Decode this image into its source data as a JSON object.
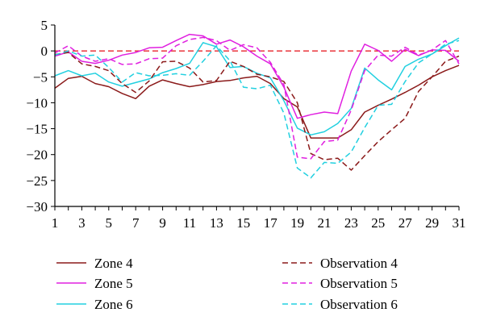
{
  "chart_data": {
    "type": "line",
    "title": "",
    "xlabel": "",
    "ylabel": "",
    "xlim": [
      1,
      31
    ],
    "ylim": [
      -30,
      5
    ],
    "x_ticks": [
      1,
      3,
      5,
      7,
      9,
      11,
      13,
      15,
      17,
      19,
      21,
      23,
      25,
      27,
      29,
      31
    ],
    "y_ticks": [
      5,
      0,
      -5,
      -10,
      -15,
      -20,
      -25,
      -30
    ],
    "grid": false,
    "legend_position": "bottom",
    "reference_line": {
      "y": 0,
      "color": "#e8232a",
      "style": "dashed"
    },
    "x": [
      1,
      2,
      3,
      4,
      5,
      6,
      7,
      8,
      9,
      10,
      11,
      12,
      13,
      14,
      15,
      16,
      17,
      18,
      19,
      20,
      21,
      22,
      23,
      24,
      25,
      26,
      27,
      28,
      29,
      30,
      31
    ],
    "series": [
      {
        "name": "Zone 4",
        "color": "#8b1a1a",
        "style": "solid",
        "values": [
          -7.2,
          -5.3,
          -4.9,
          -6.3,
          -6.9,
          -8.2,
          -9.2,
          -6.8,
          -5.6,
          -6.3,
          -6.9,
          -6.5,
          -5.9,
          -5.7,
          -5.2,
          -4.9,
          -6.3,
          -9.2,
          -10.8,
          -16.8,
          -16.8,
          -16.8,
          -15.2,
          -11.8,
          -10.5,
          -9.3,
          -8.0,
          -6.6,
          -5.0,
          -3.8,
          -2.8
        ]
      },
      {
        "name": "Zone 5",
        "color": "#e020e0",
        "style": "solid",
        "values": [
          -1.0,
          -0.2,
          -2.0,
          -2.4,
          -1.8,
          -0.8,
          -0.3,
          0.6,
          0.7,
          2.0,
          3.2,
          2.9,
          1.3,
          2.1,
          0.8,
          -1.0,
          -2.5,
          -7.0,
          -13.0,
          -12.3,
          -11.8,
          -12.1,
          -3.9,
          1.3,
          0.1,
          -2.0,
          0.3,
          -0.9,
          0.2,
          0.1,
          -2.0
        ]
      },
      {
        "name": "Zone 6",
        "color": "#22d0e0",
        "style": "solid",
        "values": [
          -4.8,
          -3.8,
          -4.8,
          -4.3,
          -6.0,
          -6.8,
          -6.1,
          -5.4,
          -4.2,
          -3.4,
          -2.4,
          1.6,
          0.8,
          -3.2,
          -3.0,
          -4.3,
          -5.2,
          -9.6,
          -14.9,
          -16.2,
          -15.6,
          -14.0,
          -11.1,
          -3.3,
          -5.6,
          -7.5,
          -3.0,
          -1.6,
          -0.6,
          1.0,
          2.5
        ]
      },
      {
        "name": "Observation 4",
        "color": "#8b1a1a",
        "style": "dashed",
        "values": [
          -0.7,
          -0.3,
          -2.5,
          -3.0,
          -3.8,
          -6.3,
          -8.0,
          -5.8,
          -2.1,
          -2.0,
          -3.3,
          -6.0,
          -5.7,
          -2.0,
          -3.0,
          -4.5,
          -5.0,
          -5.9,
          -10.0,
          -19.8,
          -21.0,
          -20.7,
          -23.0,
          -20.2,
          -17.5,
          -15.2,
          -13.0,
          -7.8,
          -5.0,
          -2.0,
          -1.0
        ]
      },
      {
        "name": "Observation 5",
        "color": "#e020e0",
        "style": "dashed",
        "values": [
          -0.4,
          1.0,
          -1.0,
          -2.0,
          -1.5,
          -2.6,
          -2.5,
          -1.5,
          -1.4,
          1.0,
          2.2,
          2.6,
          2.0,
          0.1,
          1.2,
          0.6,
          -2.2,
          -6.5,
          -20.5,
          -20.8,
          -17.5,
          -17.2,
          -11.4,
          -3.8,
          -0.8,
          -1.0,
          0.7,
          -0.8,
          0.2,
          2.0,
          -2.5
        ]
      },
      {
        "name": "Observation 6",
        "color": "#22d0e0",
        "style": "dashed",
        "values": [
          -0.8,
          0.0,
          -1.0,
          -0.8,
          -3.2,
          -6.0,
          -4.2,
          -4.8,
          -4.7,
          -4.4,
          -4.7,
          -2.0,
          1.0,
          -1.9,
          -7.0,
          -7.3,
          -6.6,
          -12.0,
          -22.6,
          -24.5,
          -21.5,
          -21.7,
          -19.5,
          -14.8,
          -10.5,
          -10.3,
          -5.9,
          -2.3,
          -0.6,
          1.3,
          2.0
        ]
      }
    ]
  }
}
